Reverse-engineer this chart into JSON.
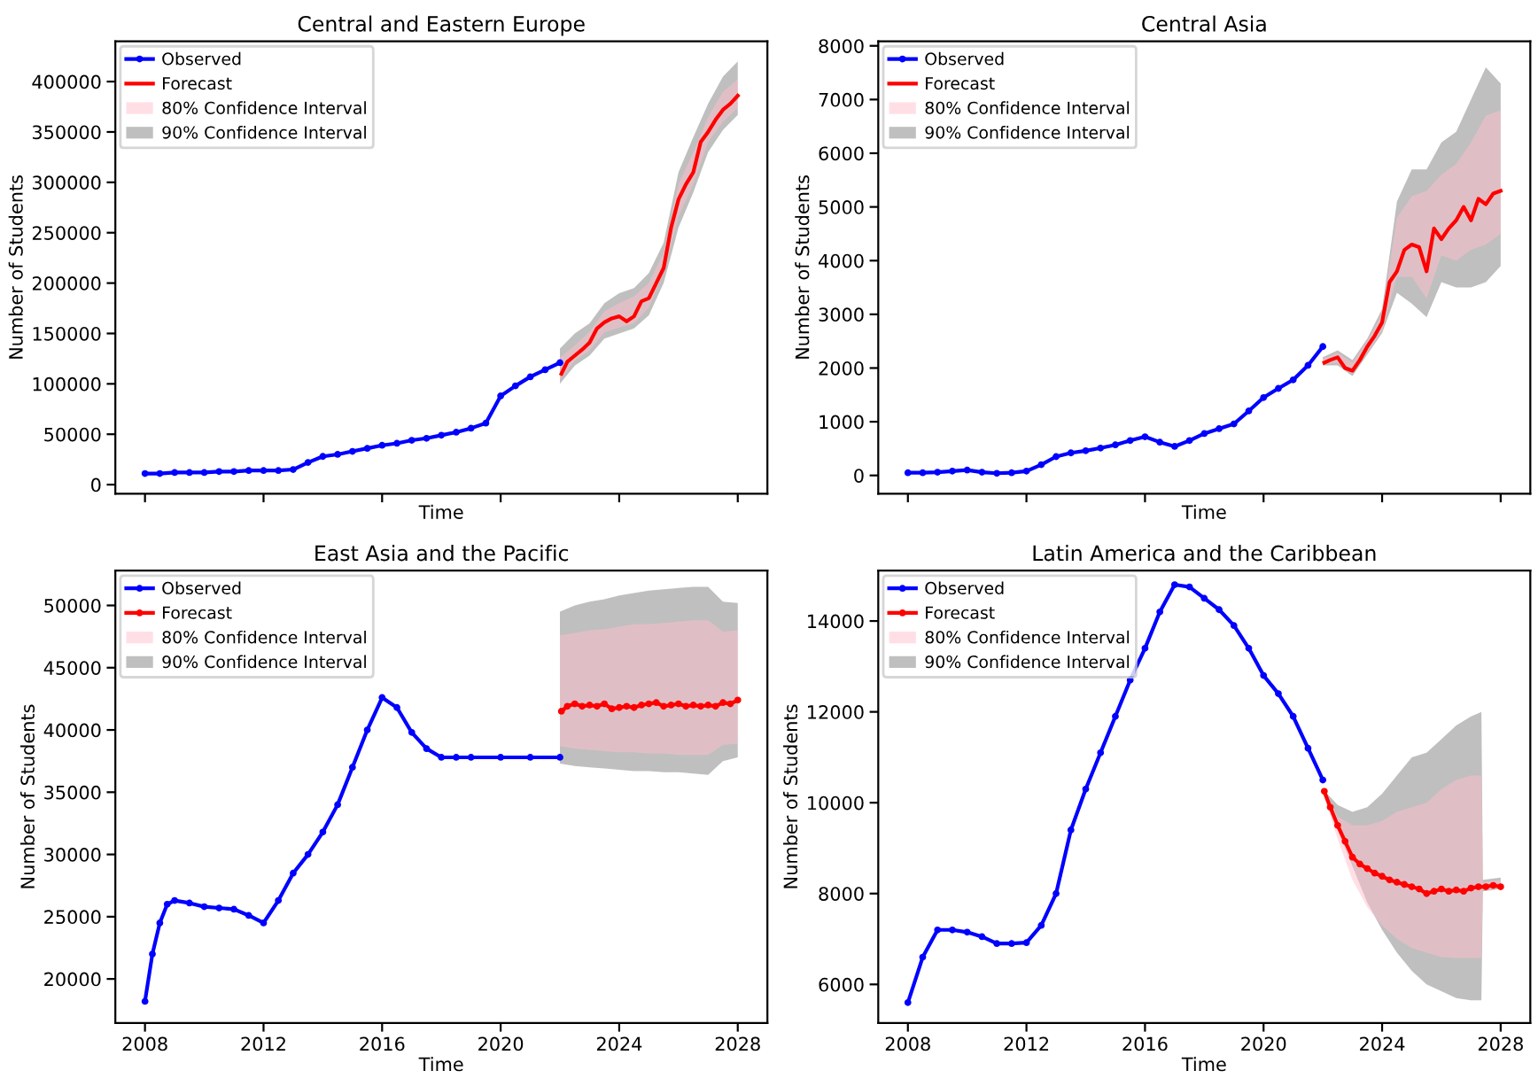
{
  "chart_data": [
    {
      "type": "line",
      "title": "Central and Eastern Europe",
      "xlabel": "Time",
      "ylabel": "Number of Students",
      "xlim": [
        2007,
        2029
      ],
      "ylim": [
        -9000,
        440000
      ],
      "xticks": [
        {
          "value": 2008,
          "label": null
        },
        {
          "value": 2012,
          "label": null
        },
        {
          "value": 2016,
          "label": null
        },
        {
          "value": 2020,
          "label": null
        },
        {
          "value": 2024,
          "label": null
        },
        {
          "value": 2028,
          "label": null
        }
      ],
      "yticks": [
        0,
        50000,
        100000,
        150000,
        200000,
        250000,
        300000,
        350000,
        400000
      ],
      "tick_labels": "y",
      "legend": "upper left",
      "series": [
        {
          "name": "Observed",
          "color": "#0000ff",
          "marker": "circle",
          "x": [
            2008,
            2008.5,
            2009,
            2009.5,
            2010,
            2010.5,
            2011,
            2011.5,
            2012,
            2012.5,
            2013,
            2013.5,
            2014,
            2014.5,
            2015,
            2015.5,
            2016,
            2016.5,
            2017,
            2017.5,
            2018,
            2018.5,
            2019,
            2019.5,
            2020,
            2020.5,
            2021,
            2021.5,
            2022
          ],
          "values": [
            11000,
            11000,
            12000,
            12000,
            12000,
            13000,
            13000,
            14000,
            14000,
            14000,
            15000,
            22000,
            28000,
            30000,
            33000,
            36000,
            39000,
            41000,
            44000,
            46000,
            49000,
            52000,
            56000,
            61000,
            88000,
            98000,
            107000,
            114000,
            121000
          ]
        },
        {
          "name": "Forecast",
          "color": "#ff0000",
          "marker": "none",
          "x": [
            2022.05,
            2022.25,
            2022.5,
            2022.75,
            2023,
            2023.25,
            2023.5,
            2023.75,
            2024,
            2024.25,
            2024.5,
            2024.75,
            2025,
            2025.25,
            2025.5,
            2025.75,
            2026,
            2026.25,
            2026.5,
            2026.75,
            2027,
            2027.25,
            2027.5,
            2027.75,
            2028
          ],
          "values": [
            110000,
            122000,
            128000,
            134000,
            141000,
            155000,
            161000,
            165000,
            167000,
            162000,
            167000,
            182000,
            185000,
            200000,
            215000,
            255000,
            283000,
            298000,
            310000,
            340000,
            350000,
            362000,
            372000,
            378000,
            386000
          ]
        },
        {
          "name": "80% Confidence Interval",
          "type": "area",
          "color": "#ffc0cb",
          "x": [
            2022,
            2022.5,
            2023,
            2023.5,
            2024,
            2024.5,
            2025,
            2025.5,
            2026,
            2026.5,
            2027,
            2027.5,
            2028
          ],
          "values": [
            null,
            null,
            null,
            null,
            null,
            null,
            null,
            null,
            null,
            null,
            null,
            null,
            null
          ],
          "lower": [
            104000,
            123000,
            133000,
            151000,
            156000,
            160000,
            176000,
            210000,
            266000,
            298000,
            340000,
            360000,
            374000
          ],
          "upper": [
            126000,
            138000,
            152000,
            172000,
            180000,
            187000,
            200000,
            230000,
            298000,
            330000,
            365000,
            390000,
            402000
          ]
        },
        {
          "name": "90% Confidence Interval",
          "type": "area",
          "color": "#808080",
          "x": [
            2022,
            2022.5,
            2023,
            2023.5,
            2024,
            2024.5,
            2025,
            2025.5,
            2026,
            2026.5,
            2027,
            2027.5,
            2028
          ],
          "values": [
            null,
            null,
            null,
            null,
            null,
            null,
            null,
            null,
            null,
            null,
            null,
            null,
            null
          ],
          "lower": [
            100000,
            118000,
            128000,
            145000,
            150000,
            155000,
            168000,
            200000,
            255000,
            290000,
            330000,
            352000,
            367000
          ],
          "upper": [
            135000,
            150000,
            160000,
            180000,
            190000,
            195000,
            210000,
            240000,
            310000,
            345000,
            378000,
            405000,
            420000
          ]
        }
      ]
    },
    {
      "type": "line",
      "title": "Central Asia",
      "xlabel": "Time",
      "ylabel": "Number of Students",
      "xlim": [
        2007,
        2029
      ],
      "ylim": [
        -340,
        8085
      ],
      "xticks": [
        {
          "value": 2008,
          "label": null
        },
        {
          "value": 2012,
          "label": null
        },
        {
          "value": 2016,
          "label": null
        },
        {
          "value": 2020,
          "label": null
        },
        {
          "value": 2024,
          "label": null
        },
        {
          "value": 2028,
          "label": null
        }
      ],
      "yticks": [
        0,
        1000,
        2000,
        3000,
        4000,
        5000,
        6000,
        7000,
        8000
      ],
      "tick_labels": "y",
      "legend": "upper left",
      "series": [
        {
          "name": "Observed",
          "color": "#0000ff",
          "marker": "circle",
          "x": [
            2008,
            2008.5,
            2009,
            2009.5,
            2010,
            2010.5,
            2011,
            2011.5,
            2012,
            2012.5,
            2013,
            2013.5,
            2014,
            2014.5,
            2015,
            2015.5,
            2016,
            2016.5,
            2017,
            2017.5,
            2018,
            2018.5,
            2019,
            2019.5,
            2020,
            2020.5,
            2021,
            2021.5,
            2022
          ],
          "values": [
            50,
            50,
            60,
            80,
            100,
            60,
            40,
            50,
            80,
            200,
            350,
            420,
            460,
            510,
            570,
            650,
            720,
            620,
            540,
            650,
            780,
            870,
            960,
            1200,
            1450,
            1620,
            1780,
            2050,
            2400
          ]
        },
        {
          "name": "Forecast",
          "color": "#ff0000",
          "marker": "none",
          "x": [
            2022.05,
            2022.25,
            2022.5,
            2022.75,
            2023,
            2023.25,
            2023.5,
            2023.75,
            2024,
            2024.25,
            2024.5,
            2024.75,
            2025,
            2025.25,
            2025.5,
            2025.75,
            2026,
            2026.25,
            2026.5,
            2026.75,
            2027,
            2027.25,
            2027.5,
            2027.75,
            2028
          ],
          "values": [
            2100,
            2150,
            2200,
            2000,
            1950,
            2150,
            2400,
            2600,
            2850,
            3600,
            3800,
            4200,
            4300,
            4250,
            3800,
            4600,
            4400,
            4600,
            4750,
            5000,
            4750,
            5150,
            5050,
            5250,
            5300
          ]
        },
        {
          "name": "80% Confidence Interval",
          "type": "area",
          "color": "#ffc0cb",
          "x": [
            2022,
            2022.5,
            2023,
            2023.5,
            2024,
            2024.5,
            2025,
            2025.5,
            2026,
            2026.5,
            2027,
            2027.5,
            2028
          ],
          "values": [
            null,
            null,
            null,
            null,
            null,
            null,
            null,
            null,
            null,
            null,
            null,
            null,
            null
          ],
          "lower": [
            2080,
            2100,
            1900,
            2300,
            2700,
            3700,
            3700,
            3300,
            4100,
            4000,
            4200,
            4300,
            4500
          ],
          "upper": [
            2170,
            2280,
            2100,
            2500,
            3000,
            4800,
            5200,
            5300,
            5600,
            5800,
            6200,
            6700,
            6800
          ]
        },
        {
          "name": "90% Confidence Interval",
          "type": "area",
          "color": "#808080",
          "x": [
            2022,
            2022.5,
            2023,
            2023.5,
            2024,
            2024.5,
            2025,
            2025.5,
            2026,
            2026.5,
            2027,
            2027.5,
            2028
          ],
          "values": [
            null,
            null,
            null,
            null,
            null,
            null,
            null,
            null,
            null,
            null,
            null,
            null,
            null
          ],
          "lower": [
            2050,
            2050,
            1850,
            2250,
            2650,
            3400,
            3200,
            2950,
            3600,
            3500,
            3500,
            3600,
            3900
          ],
          "upper": [
            2200,
            2330,
            2150,
            2550,
            3100,
            5100,
            5700,
            5700,
            6200,
            6400,
            7000,
            7600,
            7300
          ]
        }
      ]
    },
    {
      "type": "line",
      "title": "East Asia and the Pacific",
      "xlabel": "Time",
      "ylabel": "Number of Students",
      "xlim": [
        2007,
        2029
      ],
      "ylim": [
        16460,
        52800
      ],
      "xticks": [
        2008,
        2012,
        2016,
        2020,
        2024,
        2028
      ],
      "yticks": [
        20000,
        25000,
        30000,
        35000,
        40000,
        45000,
        50000
      ],
      "legend": "upper left",
      "series": [
        {
          "name": "Observed",
          "color": "#0000ff",
          "marker": "circle",
          "x": [
            2008,
            2008.25,
            2008.5,
            2008.75,
            2009,
            2009.5,
            2010,
            2010.5,
            2011,
            2011.5,
            2012,
            2012.5,
            2013,
            2013.5,
            2014,
            2014.5,
            2015,
            2015.5,
            2016,
            2016.5,
            2017,
            2017.5,
            2018,
            2018.5,
            2019,
            2020,
            2021,
            2022
          ],
          "values": [
            18200,
            22000,
            24500,
            26000,
            26300,
            26100,
            25800,
            25700,
            25600,
            25100,
            24500,
            26300,
            28500,
            30000,
            31800,
            34000,
            37000,
            40000,
            42600,
            41800,
            39800,
            38500,
            37800,
            37800,
            37800,
            37800,
            37800,
            37800
          ]
        },
        {
          "name": "Forecast",
          "color": "#ff0000",
          "marker": "circle",
          "x": [
            2022.05,
            2022.25,
            2022.5,
            2022.75,
            2023,
            2023.25,
            2023.5,
            2023.75,
            2024,
            2024.25,
            2024.5,
            2024.75,
            2025,
            2025.25,
            2025.5,
            2025.75,
            2026,
            2026.25,
            2026.5,
            2026.75,
            2027,
            2027.25,
            2027.5,
            2027.75,
            2028
          ],
          "values": [
            41500,
            41900,
            42100,
            41900,
            42000,
            41900,
            42100,
            41700,
            41800,
            41900,
            41800,
            42000,
            42100,
            42200,
            41900,
            42000,
            42100,
            41900,
            42000,
            41900,
            42000,
            41900,
            42200,
            42100,
            42400
          ]
        },
        {
          "name": "80% Confidence Interval",
          "type": "area",
          "color": "#ffc0cb",
          "x": [
            2022,
            2022.5,
            2023,
            2023.5,
            2024,
            2024.5,
            2025,
            2025.5,
            2026,
            2026.5,
            2027,
            2027.5,
            2028
          ],
          "values": [
            null,
            null,
            null,
            null,
            null,
            null,
            null,
            null,
            null,
            null,
            null,
            null,
            null
          ],
          "lower": [
            38700,
            38500,
            38400,
            38300,
            38200,
            38200,
            38100,
            38100,
            38000,
            38000,
            38000,
            38800,
            38900
          ],
          "upper": [
            47600,
            47800,
            48000,
            48100,
            48300,
            48500,
            48500,
            48600,
            48700,
            48800,
            48800,
            47900,
            48000
          ]
        },
        {
          "name": "90% Confidence Interval",
          "type": "area",
          "color": "#808080",
          "x": [
            2022,
            2022.5,
            2023,
            2023.5,
            2024,
            2024.5,
            2025,
            2025.5,
            2026,
            2026.5,
            2027,
            2027.5,
            2028
          ],
          "values": [
            null,
            null,
            null,
            null,
            null,
            null,
            null,
            null,
            null,
            null,
            null,
            null,
            null
          ],
          "lower": [
            37300,
            37100,
            37000,
            36900,
            36800,
            36700,
            36700,
            36600,
            36600,
            36500,
            36400,
            37500,
            37800
          ],
          "upper": [
            49500,
            50000,
            50300,
            50500,
            50800,
            51000,
            51200,
            51300,
            51400,
            51500,
            51500,
            50300,
            50200
          ]
        }
      ]
    },
    {
      "type": "line",
      "title": "Latin America and the Caribbean",
      "xlabel": "Time",
      "ylabel": "Number of Students",
      "xlim": [
        2007,
        2029
      ],
      "ylim": [
        5150,
        15110
      ],
      "xticks": [
        2008,
        2012,
        2016,
        2020,
        2024,
        2028
      ],
      "yticks": [
        6000,
        8000,
        10000,
        12000,
        14000
      ],
      "legend": "upper left",
      "series": [
        {
          "name": "Observed",
          "color": "#0000ff",
          "marker": "circle",
          "x": [
            2008,
            2008.5,
            2009,
            2009.5,
            2010,
            2010.5,
            2011,
            2011.5,
            2012,
            2012.5,
            2013,
            2013.5,
            2014,
            2014.5,
            2015,
            2015.5,
            2016,
            2016.5,
            2017,
            2017.5,
            2018,
            2018.5,
            2019,
            2019.5,
            2020,
            2020.5,
            2021,
            2021.5,
            2022
          ],
          "values": [
            5600,
            6600,
            7200,
            7200,
            7150,
            7050,
            6900,
            6900,
            6920,
            7300,
            8000,
            9400,
            10300,
            11100,
            11900,
            12700,
            13400,
            14200,
            14800,
            14750,
            14500,
            14250,
            13900,
            13400,
            12800,
            12400,
            11900,
            11200,
            10500
          ]
        },
        {
          "name": "Forecast",
          "color": "#ff0000",
          "marker": "circle",
          "x": [
            2022.05,
            2022.25,
            2022.5,
            2022.75,
            2023,
            2023.25,
            2023.5,
            2023.75,
            2024,
            2024.25,
            2024.5,
            2024.75,
            2025,
            2025.25,
            2025.5,
            2025.75,
            2026,
            2026.25,
            2026.5,
            2026.75,
            2027,
            2027.25,
            2027.5,
            2027.75,
            2028
          ],
          "values": [
            10250,
            9900,
            9500,
            9150,
            8800,
            8650,
            8550,
            8450,
            8380,
            8300,
            8250,
            8200,
            8150,
            8100,
            8000,
            8050,
            8100,
            8050,
            8080,
            8050,
            8120,
            8150,
            8150,
            8180,
            8150
          ]
        },
        {
          "name": "80% Confidence Interval",
          "type": "area",
          "color": "#ffc0cb",
          "x": [
            2022,
            2022.5,
            2023,
            2023.5,
            2024,
            2024.5,
            2025,
            2025.5,
            2026,
            2026.5,
            2027,
            2027.35,
            2027.4,
            2028
          ],
          "values": [
            null,
            null,
            null,
            null,
            null,
            null,
            null,
            null,
            null,
            null,
            null,
            null,
            null,
            null
          ],
          "lower": [
            10220,
            9200,
            8300,
            7700,
            7300,
            7000,
            6800,
            6700,
            6600,
            6580,
            6580,
            6580,
            8080,
            8110
          ],
          "upper": [
            10280,
            9700,
            9500,
            9500,
            9600,
            9800,
            9900,
            10000,
            10300,
            10500,
            10600,
            10600,
            8250,
            8300
          ]
        },
        {
          "name": "90% Confidence Interval",
          "type": "area",
          "color": "#808080",
          "x": [
            2022,
            2022.5,
            2023,
            2023.5,
            2024,
            2024.5,
            2025,
            2025.5,
            2026,
            2026.5,
            2027,
            2027.35,
            2027.4,
            2028
          ],
          "values": [
            null,
            null,
            null,
            null,
            null,
            null,
            null,
            null,
            null,
            null,
            null,
            null,
            null,
            null
          ],
          "lower": [
            10200,
            9400,
            8600,
            7800,
            7200,
            6700,
            6300,
            6000,
            5850,
            5700,
            5650,
            5650,
            8050,
            8100
          ],
          "upper": [
            10300,
            9950,
            9800,
            9900,
            10200,
            10600,
            11000,
            11100,
            11400,
            11700,
            11900,
            12000,
            8300,
            8350
          ]
        }
      ]
    }
  ]
}
